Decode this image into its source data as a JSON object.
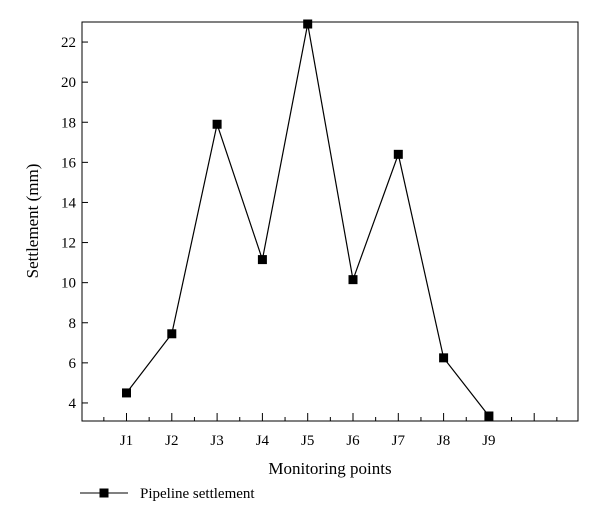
{
  "chart_data": {
    "type": "line",
    "title": "",
    "xlabel": "Monitoring points",
    "ylabel": "Settlement (mm)",
    "categories": [
      "J1",
      "J2",
      "J3",
      "J4",
      "J5",
      "J6",
      "J7",
      "J8",
      "J9"
    ],
    "series": [
      {
        "name": "Pipeline settlement",
        "values": [
          4.5,
          7.45,
          17.9,
          11.15,
          22.9,
          10.15,
          16.4,
          6.25,
          3.35
        ],
        "color": "#000000",
        "marker": "square"
      }
    ],
    "ylim": [
      3.1,
      23.0
    ],
    "yticks": [
      4,
      6,
      8,
      10,
      12,
      14,
      16,
      18,
      20,
      22
    ],
    "grid": false,
    "legend": "bottom-left"
  }
}
